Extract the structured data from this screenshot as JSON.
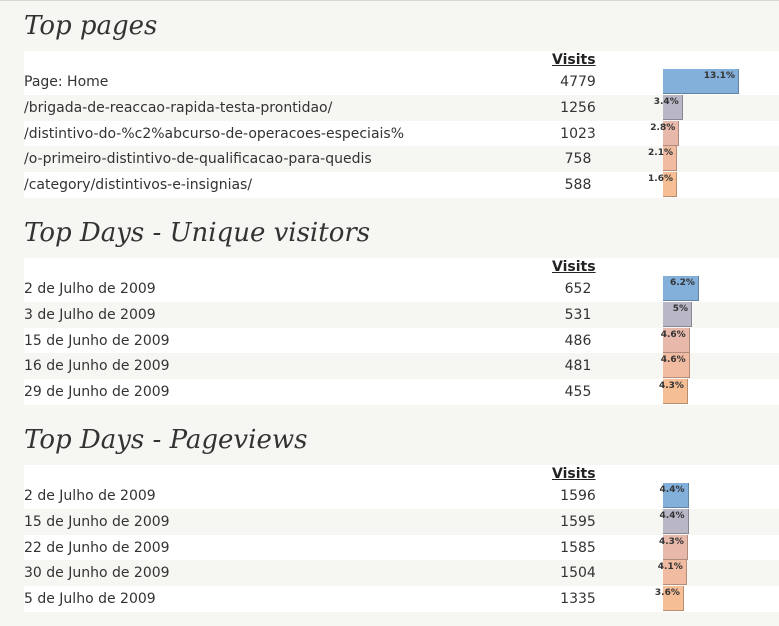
{
  "visits_label": "Visits",
  "sections": [
    {
      "title": "Top pages",
      "rows": [
        {
          "label": "Page: Home",
          "value": "4779",
          "percent": "13.1%",
          "pct": 13.1,
          "color": "#82b0da"
        },
        {
          "label": "/brigada-de-reaccao-rapida-testa-prontidao/",
          "value": "1256",
          "percent": "3.4%",
          "pct": 3.4,
          "color": "#b9b6c6"
        },
        {
          "label": "/distintivo-do-%c2%abcurso-de-operacoes-especiais%",
          "value": "1023",
          "percent": "2.8%",
          "pct": 2.8,
          "color": "#e8b8aa"
        },
        {
          "label": "/o-primeiro-distintivo-de-qualificacao-para-quedis",
          "value": "758",
          "percent": "2.1%",
          "pct": 2.1,
          "color": "#f0bba1"
        },
        {
          "label": "/category/distintivos-e-insignias/",
          "value": "588",
          "percent": "1.6%",
          "pct": 1.6,
          "color": "#f6be94"
        }
      ]
    },
    {
      "title": "Top Days - Unique visitors",
      "rows": [
        {
          "label": "2 de Julho de 2009",
          "value": "652",
          "percent": "6.2%",
          "pct": 6.2,
          "color": "#82b0da"
        },
        {
          "label": "3 de Julho de 2009",
          "value": "531",
          "percent": "5%",
          "pct": 5.0,
          "color": "#b9b6c6"
        },
        {
          "label": "15 de Junho de 2009",
          "value": "486",
          "percent": "4.6%",
          "pct": 4.6,
          "color": "#e8b8aa"
        },
        {
          "label": "16 de Junho de 2009",
          "value": "481",
          "percent": "4.6%",
          "pct": 4.6,
          "color": "#f0bba1"
        },
        {
          "label": "29 de Junho de 2009",
          "value": "455",
          "percent": "4.3%",
          "pct": 4.3,
          "color": "#f6be94"
        }
      ]
    },
    {
      "title": "Top Days - Pageviews",
      "rows": [
        {
          "label": "2 de Julho de 2009",
          "value": "1596",
          "percent": "4.4%",
          "pct": 4.4,
          "color": "#82b0da"
        },
        {
          "label": "15 de Junho de 2009",
          "value": "1595",
          "percent": "4.4%",
          "pct": 4.4,
          "color": "#b9b6c6"
        },
        {
          "label": "22 de Junho de 2009",
          "value": "1585",
          "percent": "4.3%",
          "pct": 4.3,
          "color": "#e8b8aa"
        },
        {
          "label": "30 de Junho de 2009",
          "value": "1504",
          "percent": "4.1%",
          "pct": 4.1,
          "color": "#f0bba1"
        },
        {
          "label": "5 de Julho de 2009",
          "value": "1335",
          "percent": "3.6%",
          "pct": 3.6,
          "color": "#f6be94"
        }
      ]
    }
  ]
}
